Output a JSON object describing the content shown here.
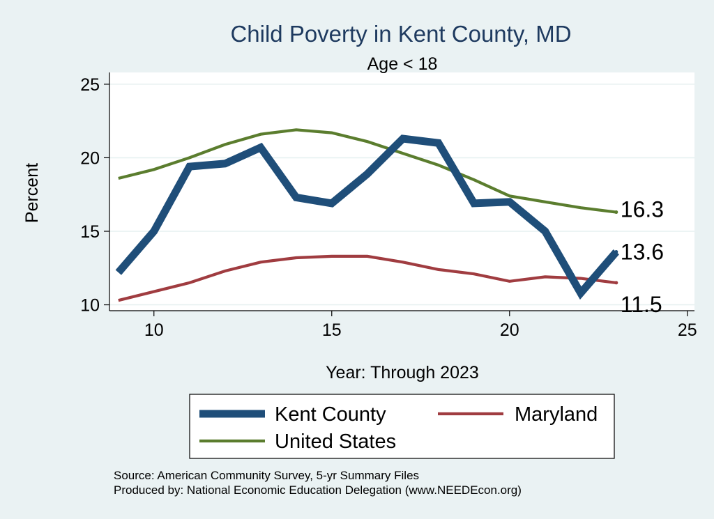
{
  "chart_data": {
    "type": "line",
    "title": "Child Poverty in Kent County, MD",
    "subtitle": "Age < 18",
    "xlabel": "Year: Through 2023",
    "ylabel": "Percent",
    "xlim": [
      8.75,
      25.2
    ],
    "ylim": [
      9.6,
      25.8
    ],
    "xticks": [
      10,
      15,
      20,
      25
    ],
    "yticks": [
      10,
      15,
      20,
      25
    ],
    "grid": true,
    "series": [
      {
        "name": "Kent County",
        "color": "#1f4e79",
        "width": "thick",
        "x": [
          9,
          10,
          11,
          12,
          13,
          14,
          15,
          16,
          17,
          18,
          19,
          20,
          21,
          22,
          23
        ],
        "values": [
          12.2,
          15.0,
          19.4,
          19.6,
          20.7,
          17.3,
          16.9,
          18.9,
          21.3,
          21.0,
          16.9,
          17.0,
          15.0,
          10.8,
          13.6
        ],
        "end_label": "13.6"
      },
      {
        "name": "Maryland",
        "color": "#a03c40",
        "width": "medium",
        "x": [
          9,
          10,
          11,
          12,
          13,
          14,
          15,
          16,
          17,
          18,
          19,
          20,
          21,
          22,
          23
        ],
        "values": [
          10.3,
          10.9,
          11.5,
          12.3,
          12.9,
          13.2,
          13.3,
          13.3,
          12.9,
          12.4,
          12.1,
          11.6,
          11.9,
          11.8,
          11.5
        ],
        "end_label": "11.5"
      },
      {
        "name": "United States",
        "color": "#5b7d2e",
        "width": "medium",
        "x": [
          9,
          10,
          11,
          12,
          13,
          14,
          15,
          16,
          17,
          18,
          19,
          20,
          21,
          22,
          23
        ],
        "values": [
          18.6,
          19.2,
          20.0,
          20.9,
          21.6,
          21.9,
          21.7,
          21.1,
          20.3,
          19.5,
          18.5,
          17.4,
          17.0,
          16.6,
          16.3
        ],
        "end_label": "16.3"
      }
    ],
    "legend": {
      "placement": "bottom",
      "entries": [
        "Kent County",
        "Maryland",
        "United States"
      ]
    }
  },
  "footer": {
    "source": "Source: American Community Survey, 5-yr Summary Files",
    "produced": "Produced by: National Economic Education Delegation (www.NEEDEcon.org)"
  },
  "colors": {
    "background": "#eaf2f3",
    "plot_background": "#ffffff",
    "grid": "#e6f0f0"
  }
}
